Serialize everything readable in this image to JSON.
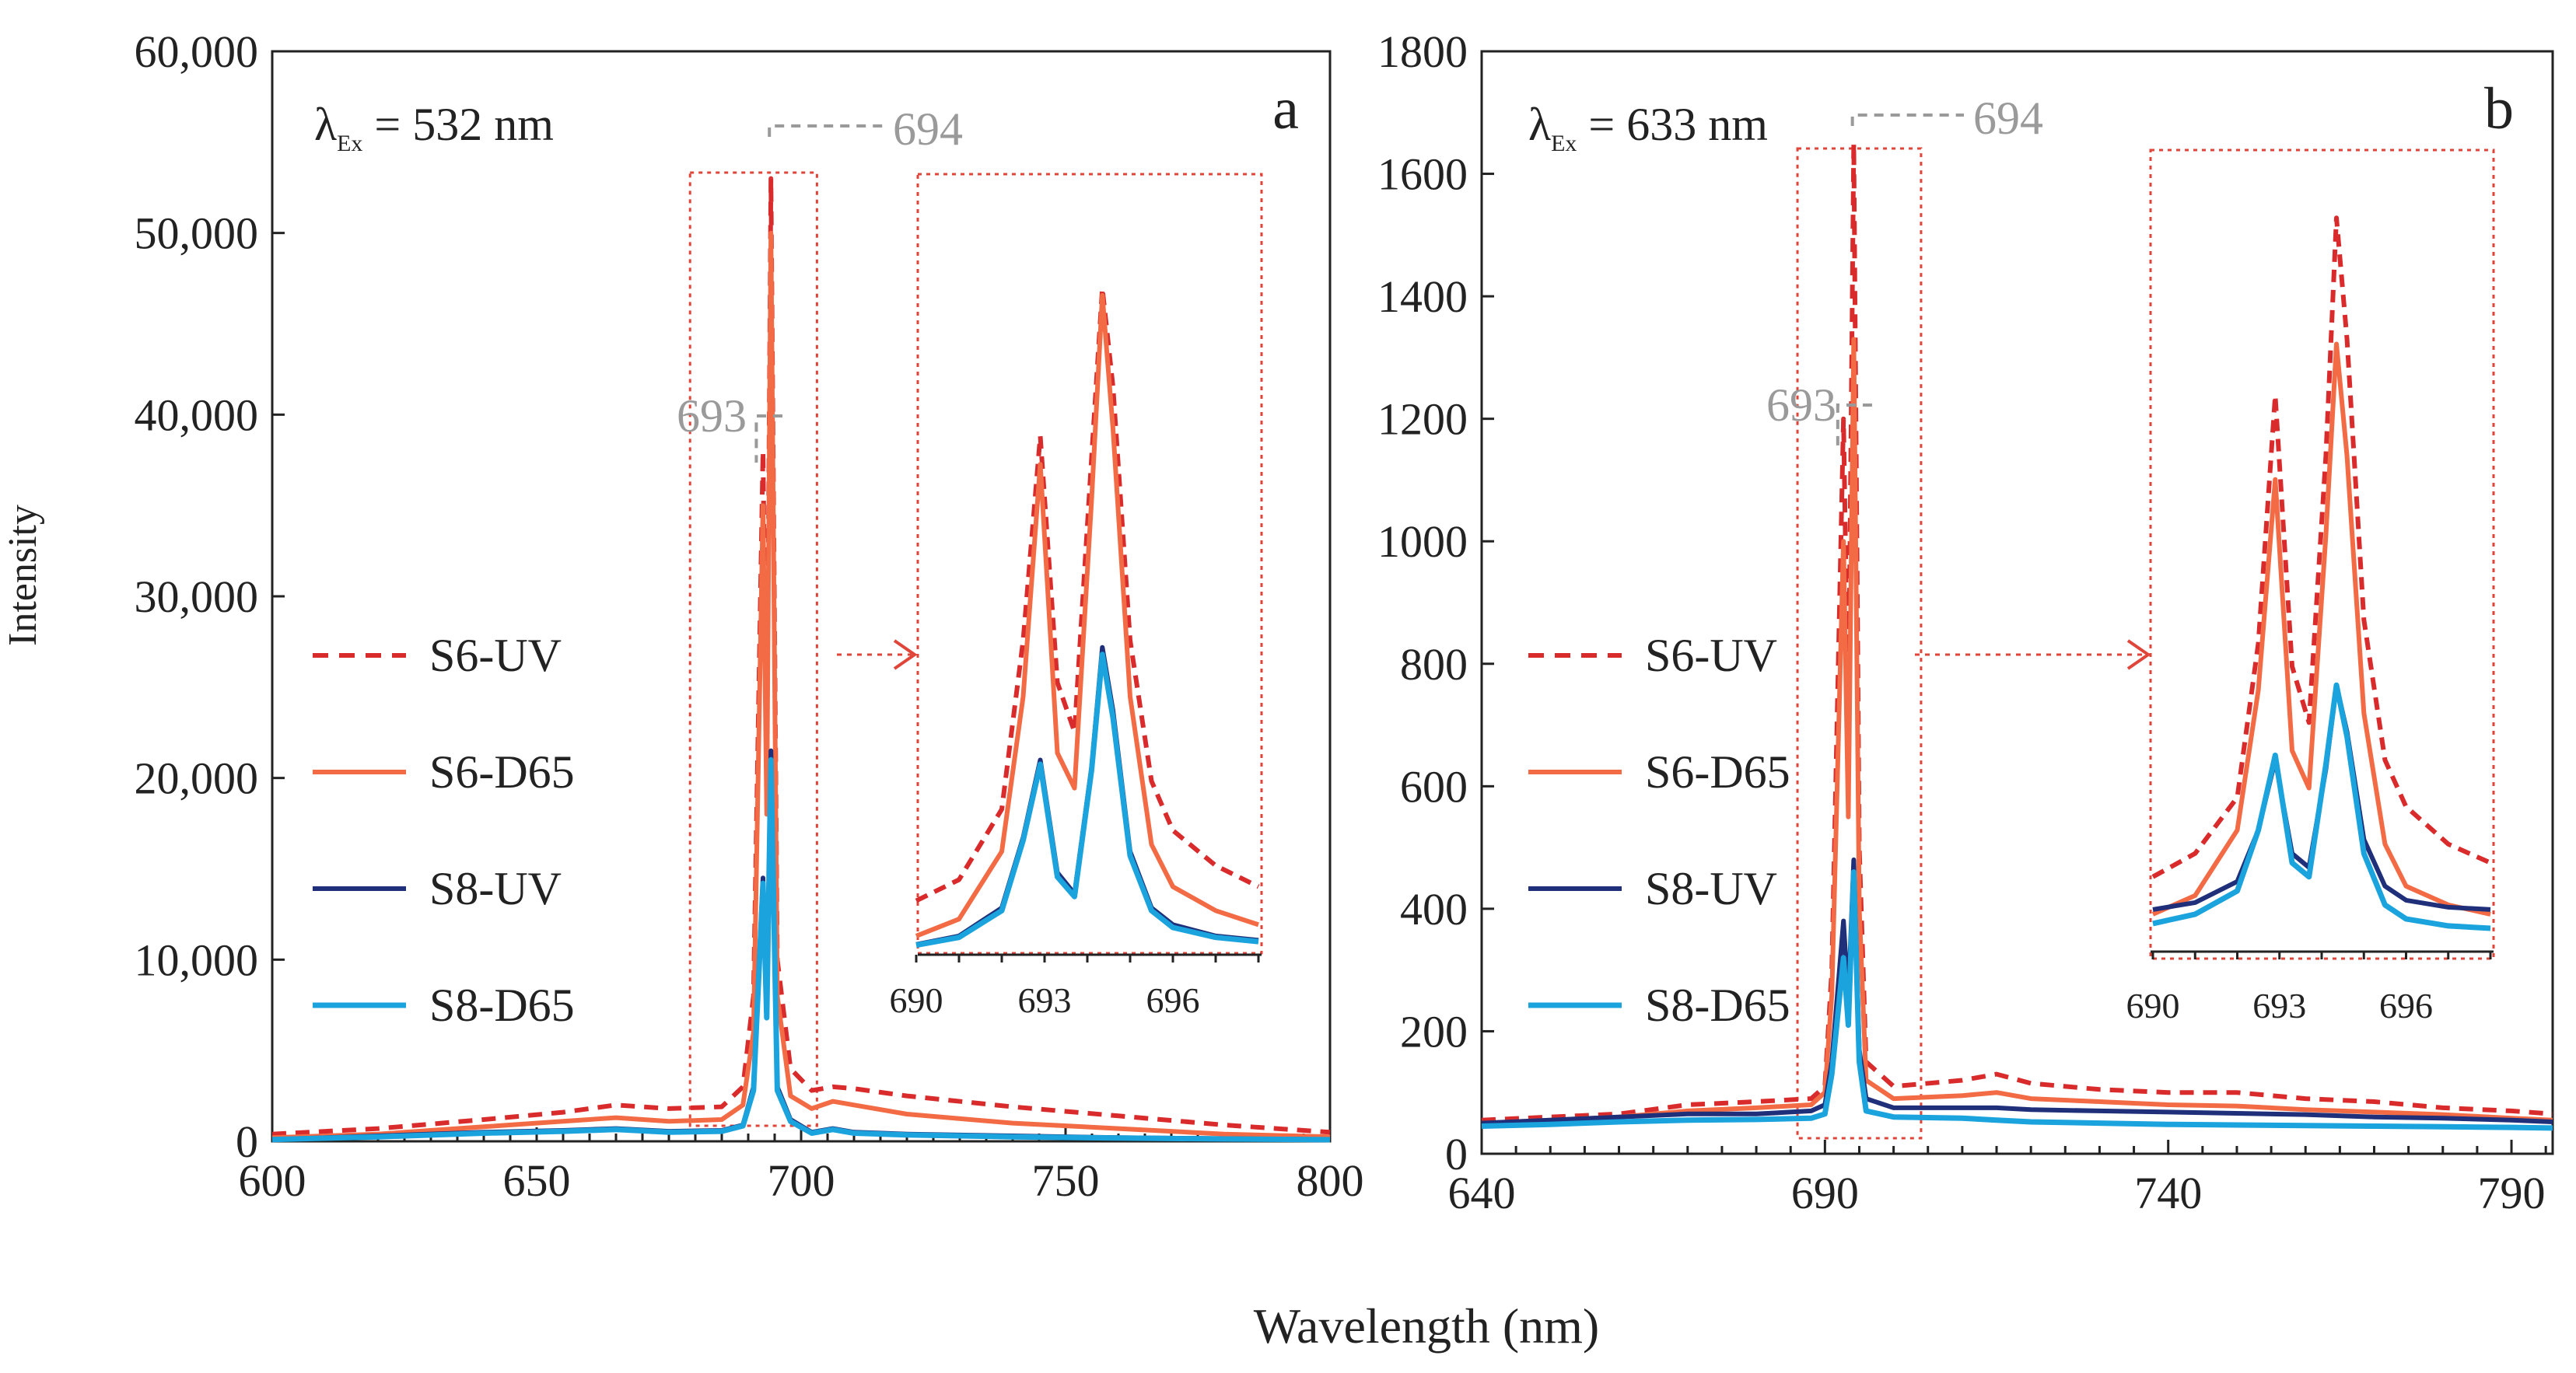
{
  "figure": {
    "shared_xlabel": "Wavelength (nm)",
    "shared_ylabel": "Intensity"
  },
  "colors": {
    "s6_uv": "#d92b2b",
    "s6_d65": "#f26b45",
    "s8_uv": "#1f2f7a",
    "s8_d65": "#1aa3dc",
    "annotation_gray": "#9a9a9a",
    "box_red": "#e0453a"
  },
  "legend": [
    {
      "key": "s6_uv",
      "label": "S6-UV",
      "style": "dashed"
    },
    {
      "key": "s6_d65",
      "label": "S6-D65",
      "style": "solid"
    },
    {
      "key": "s8_uv",
      "label": "S8-UV",
      "style": "solid"
    },
    {
      "key": "s8_d65",
      "label": "S8-D65",
      "style": "solid"
    }
  ],
  "chart_data": [
    {
      "type": "line",
      "panel_label": "a",
      "excitation_prefix": "λ",
      "excitation_sub": "Ex",
      "excitation_suffix": " = 532 nm",
      "xlabel": "Wavelength (nm)",
      "ylabel": "Intensity",
      "xlim": [
        600,
        800
      ],
      "ylim": [
        0,
        60000
      ],
      "xticks": [
        600,
        650,
        700,
        750,
        800
      ],
      "xtick_labels": [
        "600",
        "650",
        "700",
        "750",
        "800"
      ],
      "yticks": [
        0,
        10000,
        20000,
        30000,
        40000,
        50000,
        60000
      ],
      "ytick_labels": [
        "0",
        "10,000",
        "20,000",
        "30,000",
        "40,000",
        "50,000",
        "60,000"
      ],
      "annotations": [
        {
          "text": "694",
          "x": 694
        },
        {
          "text": "693",
          "x": 693
        }
      ],
      "zoom_box_x": [
        679,
        703
      ],
      "series": [
        {
          "key": "s6_uv",
          "name": "S6-UV",
          "x": [
            600,
            620,
            640,
            655,
            665,
            675,
            685,
            689,
            691,
            692.8,
            693.5,
            694.3,
            695.5,
            698,
            702,
            706,
            710,
            720,
            740,
            760,
            780,
            800
          ],
          "y": [
            400,
            700,
            1200,
            1600,
            2000,
            1800,
            1900,
            3000,
            8000,
            38000,
            20000,
            53000,
            10000,
            4000,
            2800,
            3000,
            2900,
            2500,
            1900,
            1400,
            900,
            500
          ]
        },
        {
          "key": "s6_d65",
          "name": "S6-D65",
          "x": [
            600,
            620,
            640,
            655,
            665,
            675,
            685,
            689,
            691,
            692.8,
            693.5,
            694.3,
            695.5,
            698,
            702,
            706,
            710,
            720,
            740,
            760,
            780,
            800
          ],
          "y": [
            200,
            400,
            800,
            1100,
            1300,
            1100,
            1200,
            2000,
            6000,
            35000,
            18000,
            50000,
            8000,
            2500,
            1800,
            2200,
            2000,
            1500,
            1000,
            700,
            400,
            250
          ]
        },
        {
          "key": "s8_uv",
          "name": "S8-UV",
          "x": [
            600,
            620,
            640,
            655,
            665,
            675,
            685,
            689,
            691,
            692.8,
            693.5,
            694.3,
            695.5,
            698,
            702,
            706,
            710,
            720,
            740,
            760,
            780,
            800
          ],
          "y": [
            100,
            300,
            500,
            600,
            700,
            550,
            600,
            900,
            3000,
            14500,
            7000,
            21500,
            3000,
            1200,
            500,
            700,
            500,
            400,
            300,
            200,
            150,
            100
          ]
        },
        {
          "key": "s8_d65",
          "name": "S8-D65",
          "x": [
            600,
            620,
            640,
            655,
            665,
            675,
            685,
            689,
            691,
            692.8,
            693.5,
            694.3,
            695.5,
            698,
            702,
            706,
            710,
            720,
            740,
            760,
            780,
            800
          ],
          "y": [
            100,
            250,
            450,
            550,
            650,
            500,
            550,
            850,
            2800,
            14200,
            6800,
            21000,
            2800,
            1100,
            450,
            650,
            450,
            350,
            250,
            180,
            130,
            90
          ]
        }
      ],
      "inset": {
        "xlim": [
          690,
          698
        ],
        "xticks": [
          690,
          693,
          696
        ],
        "xtick_labels": [
          "690",
          "693",
          "696"
        ],
        "ylim": [
          0,
          55000
        ],
        "series": [
          {
            "key": "s6_uv",
            "x": [
              690,
              691,
              692,
              692.5,
              692.9,
              693.3,
              693.7,
              694.1,
              694.35,
              694.6,
              695,
              695.5,
              696,
              697,
              698
            ],
            "y": [
              3500,
              5000,
              10000,
              22000,
              36500,
              19000,
              15500,
              35000,
              47000,
              40000,
              22000,
              12000,
              8500,
              6000,
              4500
            ]
          },
          {
            "key": "s6_d65",
            "x": [
              690,
              691,
              692,
              692.5,
              692.9,
              693.3,
              693.7,
              694.1,
              694.35,
              694.6,
              695,
              695.5,
              696,
              697,
              698
            ],
            "y": [
              1000,
              2200,
              7000,
              18000,
              34500,
              14000,
              11500,
              32000,
              46500,
              37000,
              18000,
              7500,
              4500,
              2800,
              1800
            ]
          },
          {
            "key": "s8_uv",
            "x": [
              690,
              691,
              692,
              692.5,
              692.9,
              693.3,
              693.7,
              694.1,
              694.35,
              694.6,
              695,
              695.5,
              696,
              697,
              698
            ],
            "y": [
              400,
              1000,
              3000,
              8000,
              13500,
              5500,
              4000,
              13000,
              21500,
              17000,
              7000,
              3000,
              1800,
              1000,
              700
            ]
          },
          {
            "key": "s8_d65",
            "x": [
              690,
              691,
              692,
              692.5,
              692.9,
              693.3,
              693.7,
              694.1,
              694.35,
              694.6,
              695,
              695.5,
              696,
              697,
              698
            ],
            "y": [
              350,
              900,
              2800,
              7800,
              13200,
              5200,
              3800,
              12800,
              21000,
              16500,
              6700,
              2800,
              1600,
              900,
              600
            ]
          }
        ]
      }
    },
    {
      "type": "line",
      "panel_label": "b",
      "excitation_prefix": "λ",
      "excitation_sub": "Ex",
      "excitation_suffix": " = 633 nm",
      "xlabel": "Wavelength (nm)",
      "ylabel": "Intensity",
      "xlim": [
        640,
        796
      ],
      "ylim": [
        0,
        1800
      ],
      "xticks": [
        640,
        690,
        740,
        790
      ],
      "xtick_labels": [
        "640",
        "690",
        "740",
        "790"
      ],
      "yticks": [
        0,
        200,
        400,
        600,
        800,
        1000,
        1200,
        1400,
        1600,
        1800
      ],
      "ytick_labels": [
        "0",
        "200",
        "400",
        "600",
        "800",
        "1000",
        "1200",
        "1400",
        "1600",
        "1800"
      ],
      "annotations": [
        {
          "text": "694",
          "x": 694
        },
        {
          "text": "693",
          "x": 693
        }
      ],
      "zoom_box_x": [
        686,
        704
      ],
      "series": [
        {
          "key": "s6_uv",
          "name": "S6-UV",
          "x": [
            640,
            650,
            660,
            670,
            680,
            688,
            690,
            691,
            692.7,
            693.4,
            694.2,
            695,
            696,
            700,
            710,
            715,
            720,
            730,
            740,
            750,
            760,
            770,
            780,
            790,
            796
          ],
          "y": [
            55,
            60,
            65,
            80,
            85,
            90,
            110,
            300,
            1200,
            700,
            1650,
            500,
            150,
            110,
            120,
            130,
            115,
            105,
            100,
            100,
            90,
            85,
            75,
            70,
            65
          ]
        },
        {
          "key": "s6_d65",
          "name": "S6-D65",
          "x": [
            640,
            650,
            660,
            670,
            680,
            688,
            690,
            691,
            692.7,
            693.4,
            694.2,
            695,
            696,
            700,
            710,
            715,
            720,
            730,
            740,
            750,
            760,
            770,
            780,
            790,
            796
          ],
          "y": [
            50,
            55,
            60,
            70,
            75,
            80,
            100,
            260,
            1000,
            550,
            1330,
            400,
            120,
            90,
            95,
            100,
            90,
            85,
            80,
            78,
            72,
            68,
            64,
            58,
            55
          ]
        },
        {
          "key": "s8_uv",
          "name": "S8-UV",
          "x": [
            640,
            650,
            660,
            670,
            680,
            688,
            690,
            691,
            692.7,
            693.4,
            694.2,
            695,
            696,
            700,
            710,
            715,
            720,
            730,
            740,
            750,
            760,
            770,
            780,
            790,
            796
          ],
          "y": [
            50,
            55,
            60,
            65,
            65,
            70,
            80,
            150,
            380,
            250,
            480,
            170,
            90,
            75,
            75,
            75,
            72,
            70,
            68,
            66,
            64,
            60,
            58,
            55,
            52
          ]
        },
        {
          "key": "s8_d65",
          "name": "S8-D65",
          "x": [
            640,
            650,
            660,
            670,
            680,
            688,
            690,
            691,
            692.7,
            693.4,
            694.2,
            695,
            696,
            700,
            710,
            715,
            720,
            730,
            740,
            750,
            760,
            770,
            780,
            790,
            796
          ],
          "y": [
            45,
            48,
            52,
            55,
            56,
            58,
            65,
            130,
            320,
            210,
            460,
            150,
            70,
            60,
            58,
            55,
            52,
            50,
            48,
            47,
            46,
            45,
            44,
            43,
            42
          ]
        }
      ],
      "inset": {
        "xlim": [
          690,
          698
        ],
        "xticks": [
          690,
          693,
          696
        ],
        "xtick_labels": [
          "690",
          "693",
          "696"
        ],
        "ylim": [
          0,
          1700
        ],
        "series": [
          {
            "key": "s6_uv",
            "x": [
              690,
              691,
              692,
              692.5,
              692.9,
              693.3,
              693.7,
              694.1,
              694.35,
              694.6,
              695,
              695.5,
              696,
              697,
              698
            ],
            "y": [
              150,
              200,
              320,
              650,
              1180,
              600,
              480,
              1050,
              1560,
              1300,
              700,
              400,
              300,
              220,
              180
            ]
          },
          {
            "key": "s6_d65",
            "x": [
              690,
              691,
              692,
              692.5,
              692.9,
              693.3,
              693.7,
              694.1,
              694.35,
              694.6,
              695,
              695.5,
              696,
              697,
              698
            ],
            "y": [
              70,
              110,
              250,
              550,
              1000,
              420,
              340,
              880,
              1290,
              1050,
              500,
              220,
              130,
              90,
              70
            ]
          },
          {
            "key": "s8_uv",
            "x": [
              690,
              691,
              692,
              692.5,
              692.9,
              693.3,
              693.7,
              694.1,
              694.35,
              694.6,
              695,
              695.5,
              696,
              697,
              698
            ],
            "y": [
              80,
              95,
              140,
              250,
              400,
              200,
              170,
              380,
              560,
              460,
              230,
              130,
              100,
              85,
              80
            ]
          },
          {
            "key": "s8_d65",
            "x": [
              690,
              691,
              692,
              692.5,
              692.9,
              693.3,
              693.7,
              694.1,
              694.35,
              694.6,
              695,
              695.5,
              696,
              697,
              698
            ],
            "y": [
              50,
              70,
              120,
              250,
              410,
              180,
              150,
              390,
              560,
              450,
              200,
              90,
              60,
              45,
              40
            ]
          }
        ]
      }
    }
  ]
}
